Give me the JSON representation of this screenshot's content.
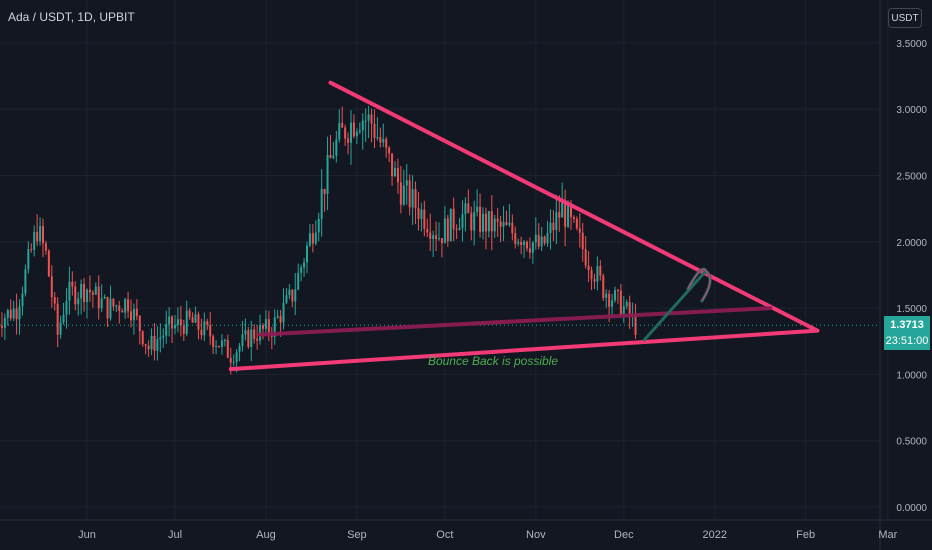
{
  "header": {
    "symbol_title": "Ada / USDT, 1D, UPBIT",
    "currency_button": "USDT"
  },
  "last_price": {
    "value": "1.3713",
    "countdown": "23:51:00"
  },
  "colors": {
    "background": "#131722",
    "grid": "#1e222d",
    "up": "#26a69a",
    "down": "#ef5350",
    "trendline": "#f23b76",
    "midline": "#8c1d52",
    "annotation": "#4caf50"
  },
  "chart_data": {
    "type": "candlestick",
    "x_tick_labels": [
      "Jun",
      "Jul",
      "Aug",
      "Sep",
      "Oct",
      "Nov",
      "Dec",
      "2022",
      "Feb",
      "Mar"
    ],
    "y_tick_labels": [
      "3.5000",
      "3.0000",
      "2.5000",
      "2.0000",
      "1.5000",
      "1.0000",
      "0.5000",
      "0.0000"
    ],
    "ylim": [
      0,
      3.6
    ],
    "price_series": [
      [
        "2021-05-01",
        1.4
      ],
      [
        "2021-05-08",
        1.5
      ],
      [
        "2021-05-15",
        2.1
      ],
      [
        "2021-05-18",
        1.9
      ],
      [
        "2021-05-22",
        1.3
      ],
      [
        "2021-05-25",
        1.6
      ],
      [
        "2021-06-01",
        1.65
      ],
      [
        "2021-06-08",
        1.5
      ],
      [
        "2021-06-15",
        1.55
      ],
      [
        "2021-06-22",
        1.2
      ],
      [
        "2021-06-29",
        1.35
      ],
      [
        "2021-07-06",
        1.4
      ],
      [
        "2021-07-13",
        1.3
      ],
      [
        "2021-07-20",
        1.15
      ],
      [
        "2021-07-27",
        1.3
      ],
      [
        "2021-08-03",
        1.35
      ],
      [
        "2021-08-10",
        1.6
      ],
      [
        "2021-08-17",
        2.1
      ],
      [
        "2021-08-24",
        2.7
      ],
      [
        "2021-08-28",
        2.85
      ],
      [
        "2021-09-02",
        2.95
      ],
      [
        "2021-09-06",
        2.9
      ],
      [
        "2021-09-10",
        2.7
      ],
      [
        "2021-09-16",
        2.4
      ],
      [
        "2021-09-22",
        2.25
      ],
      [
        "2021-09-29",
        2.05
      ],
      [
        "2021-10-06",
        2.2
      ],
      [
        "2021-10-13",
        2.15
      ],
      [
        "2021-10-20",
        2.1
      ],
      [
        "2021-10-27",
        2.05
      ],
      [
        "2021-11-03",
        1.95
      ],
      [
        "2021-11-10",
        2.25
      ],
      [
        "2021-11-17",
        1.95
      ],
      [
        "2021-11-24",
        1.65
      ],
      [
        "2021-12-01",
        1.5
      ],
      [
        "2021-12-05",
        1.37
      ]
    ],
    "trendlines": [
      {
        "name": "upper-resistance",
        "from": [
          "2021-08-23",
          3.2
        ],
        "to": [
          "2022-02-05",
          1.33
        ]
      },
      {
        "name": "lower-support",
        "from": [
          "2021-07-20",
          1.04
        ],
        "to": [
          "2022-02-05",
          1.33
        ]
      },
      {
        "name": "horizontal-level",
        "from": [
          "2021-07-30",
          1.3
        ],
        "to": [
          "2022-01-20",
          1.5
        ]
      }
    ],
    "forecast_arrow": {
      "from": [
        "2021-12-08",
        1.26
      ],
      "to": [
        "2021-12-29",
        1.78
      ]
    },
    "annotation": "Bounce Back is possible",
    "last_price_line": 1.3713
  }
}
